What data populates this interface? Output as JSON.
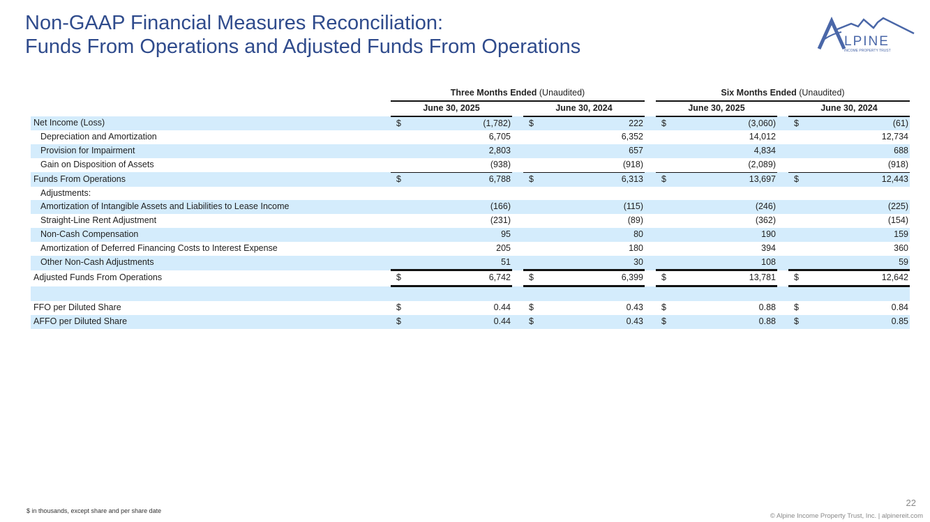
{
  "title": {
    "line1": "Non-GAAP Financial Measures Reconciliation:",
    "line2": "Funds From Operations and Adjusted Funds From Operations"
  },
  "logo": {
    "text": "ALPINE",
    "subtext": "INCOME PROPERTY TRUST",
    "color": "#4a67a8"
  },
  "table": {
    "groups": [
      {
        "bold": "Three Months Ended",
        "note": " (Unaudited)"
      },
      {
        "bold": "Six Months Ended",
        "note": " (Unaudited)"
      }
    ],
    "columns": [
      "June 30, 2025",
      "June 30, 2024",
      "June 30, 2025",
      "June 30, 2024"
    ],
    "shade_color": "#d4ecfc",
    "rows": [
      {
        "label": "Net Income (Loss)",
        "indent": false,
        "dollar": true,
        "values": [
          "(1,782)",
          "222",
          "(3,060)",
          "(61)"
        ]
      },
      {
        "label": "Depreciation and Amortization",
        "indent": true,
        "dollar": false,
        "values": [
          "6,705",
          "6,352",
          "14,012",
          "12,734"
        ]
      },
      {
        "label": "Provision for Impairment",
        "indent": true,
        "dollar": false,
        "values": [
          "2,803",
          "657",
          "4,834",
          "688"
        ]
      },
      {
        "label": "Gain on Disposition of Assets",
        "indent": true,
        "dollar": false,
        "values": [
          "(938)",
          "(918)",
          "(2,089)",
          "(918)"
        ],
        "rule": "line1"
      },
      {
        "label": "Funds From Operations",
        "indent": false,
        "dollar": true,
        "values": [
          "6,788",
          "6,313",
          "13,697",
          "12,443"
        ]
      },
      {
        "label": "Adjustments:",
        "indent": true,
        "dollar": false,
        "values": [
          "",
          "",
          "",
          ""
        ]
      },
      {
        "label": "Amortization of Intangible Assets and Liabilities to Lease Income",
        "indent": true,
        "dollar": false,
        "values": [
          "(166)",
          "(115)",
          "(246)",
          "(225)"
        ]
      },
      {
        "label": "Straight-Line Rent Adjustment",
        "indent": true,
        "dollar": false,
        "values": [
          "(231)",
          "(89)",
          "(362)",
          "(154)"
        ]
      },
      {
        "label": "Non-Cash Compensation",
        "indent": true,
        "dollar": false,
        "values": [
          "95",
          "80",
          "190",
          "159"
        ]
      },
      {
        "label": "Amortization of Deferred Financing Costs to Interest Expense",
        "indent": true,
        "dollar": false,
        "values": [
          "205",
          "180",
          "394",
          "360"
        ]
      },
      {
        "label": "Other Non-Cash Adjustments",
        "indent": true,
        "dollar": false,
        "values": [
          "51",
          "30",
          "108",
          "59"
        ],
        "rule": "line2"
      },
      {
        "label": "Adjusted Funds From Operations",
        "indent": false,
        "dollar": true,
        "values": [
          "6,742",
          "6,399",
          "13,781",
          "12,642"
        ],
        "rule": "line3"
      },
      {
        "label": "",
        "indent": false,
        "dollar": false,
        "values": [
          "",
          "",
          "",
          ""
        ]
      },
      {
        "label": "FFO per Diluted Share",
        "indent": false,
        "dollar": true,
        "values": [
          "0.44",
          "0.43",
          "0.88",
          "0.84"
        ]
      },
      {
        "label": "AFFO per Diluted Share",
        "indent": false,
        "dollar": true,
        "values": [
          "0.44",
          "0.43",
          "0.88",
          "0.85"
        ]
      }
    ],
    "currency_symbol": "$"
  },
  "footer": {
    "note": "$ in thousands, except share and per share date",
    "page_number": "22",
    "copyright": "© Alpine Income Property Trust, Inc.  |  alpinereit.com"
  }
}
